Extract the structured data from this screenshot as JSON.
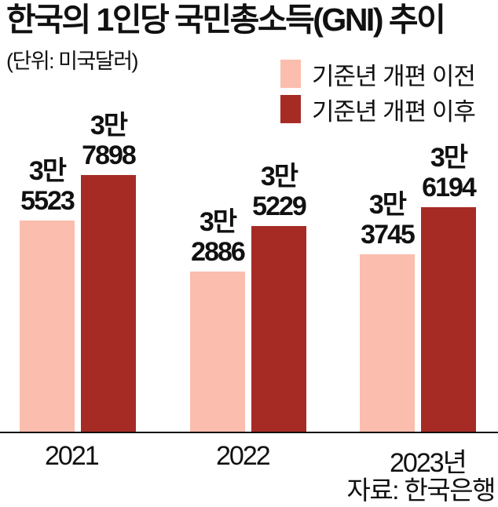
{
  "header": {
    "title": "한국의 1인당 국민총소득(GNI) 추이",
    "unit": "(단위: 미국달러)"
  },
  "legend": [
    {
      "label": "기준년 개편 이전",
      "color": "#fbbdad"
    },
    {
      "label": "기준년 개편 이후",
      "color": "#a62b25"
    }
  ],
  "footer": {
    "source": "자료: 한국은행"
  },
  "groups": [
    {
      "x_label": "2021",
      "bars": [
        {
          "value": 35523,
          "label_line1": "3만",
          "label_line2": "5523"
        },
        {
          "value": 37898,
          "label_line1": "3만",
          "label_line2": "7898"
        }
      ]
    },
    {
      "x_label": "2022",
      "bars": [
        {
          "value": 32886,
          "label_line1": "3만",
          "label_line2": "2886"
        },
        {
          "value": 35229,
          "label_line1": "3만",
          "label_line2": "5229"
        }
      ]
    },
    {
      "x_label": "2023년",
      "bars": [
        {
          "value": 33745,
          "label_line1": "3만",
          "label_line2": "3745"
        },
        {
          "value": 36194,
          "label_line1": "3만",
          "label_line2": "6194"
        }
      ]
    }
  ],
  "chart_data": {
    "type": "bar",
    "title": "한국의 1인당 국민총소득(GNI) 추이",
    "subtitle": "(단위: 미국달러)",
    "xlabel": "",
    "ylabel": "미국달러",
    "categories": [
      "2021",
      "2022",
      "2023"
    ],
    "series": [
      {
        "name": "기준년 개편 이전",
        "color": "#fbbdad",
        "values": [
          35523,
          32886,
          33745
        ]
      },
      {
        "name": "기준년 개편 이후",
        "color": "#a62b25",
        "values": [
          37898,
          35229,
          36194
        ]
      }
    ],
    "data_labels": [
      [
        "3만 5523",
        "3만 2886",
        "3만 3745"
      ],
      [
        "3만 7898",
        "3만 5229",
        "3만 6194"
      ]
    ],
    "y_axis_visible": false,
    "grid": false,
    "legend_position": "top-right",
    "source": "자료: 한국은행"
  }
}
